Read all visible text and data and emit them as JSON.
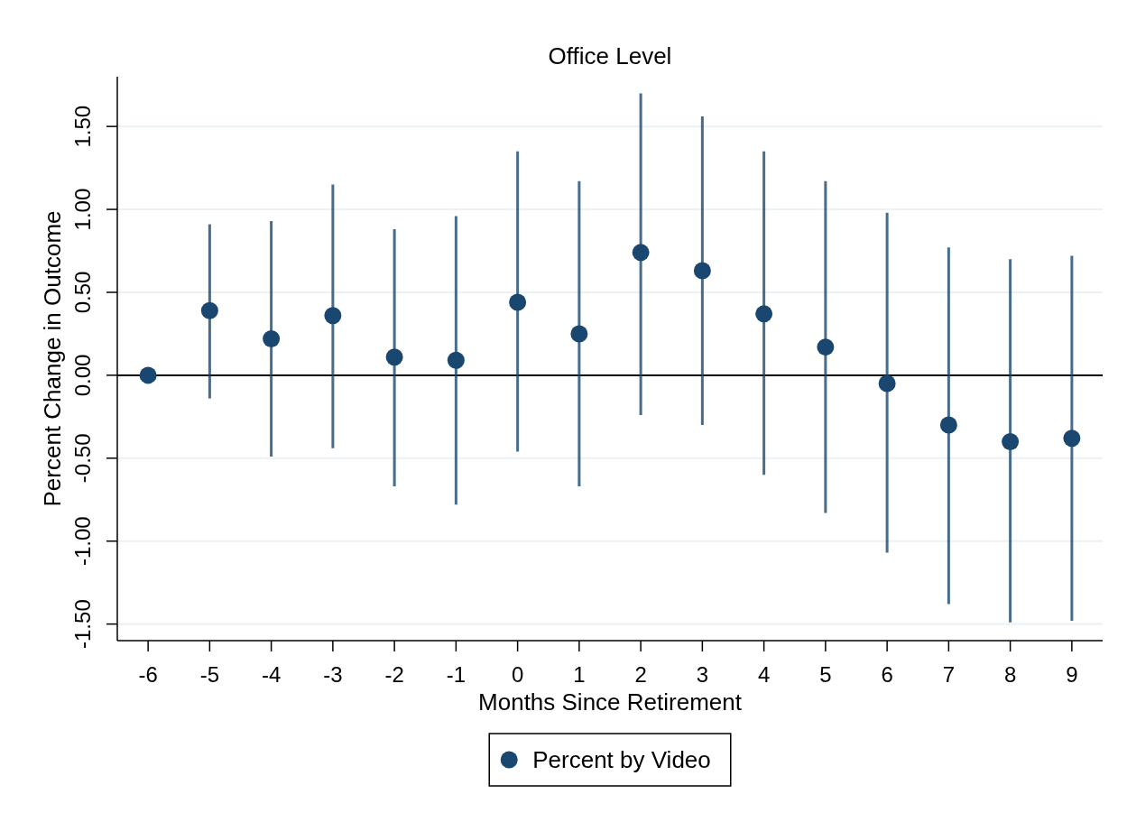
{
  "chart_data": {
    "type": "scatter",
    "title": "Office Level",
    "xlabel": "Months Since Retirement",
    "ylabel": "Percent Change in Outcome",
    "x": [
      -6,
      -5,
      -4,
      -3,
      -2,
      -1,
      0,
      1,
      2,
      3,
      4,
      5,
      6,
      7,
      8,
      9
    ],
    "series": [
      {
        "name": "Percent by Video",
        "color": "#1a476f",
        "values": [
          0,
          0.39,
          0.22,
          0.36,
          0.11,
          0.09,
          0.44,
          0.25,
          0.74,
          0.63,
          0.37,
          0.17,
          -0.05,
          -0.3,
          -0.4,
          -0.38
        ],
        "errors": [
          null,
          [
            -0.14,
            0.91
          ],
          [
            -0.49,
            0.93
          ],
          [
            -0.44,
            1.15
          ],
          [
            -0.67,
            0.88
          ],
          [
            -0.78,
            0.96
          ],
          [
            -0.46,
            1.35
          ],
          [
            -0.67,
            1.17
          ],
          [
            -0.24,
            1.7
          ],
          [
            -0.3,
            1.56
          ],
          [
            -0.6,
            1.35
          ],
          [
            -0.83,
            1.17
          ],
          [
            -1.07,
            0.98
          ],
          [
            -1.38,
            0.77
          ],
          [
            -1.49,
            0.7
          ],
          [
            -1.48,
            0.72
          ]
        ]
      }
    ],
    "xlim": [
      -6.5,
      9.5
    ],
    "xticks": [
      -6,
      -5,
      -4,
      -3,
      -2,
      -1,
      0,
      1,
      2,
      3,
      4,
      5,
      6,
      7,
      8,
      9
    ],
    "ylim": [
      -1.6,
      1.8
    ],
    "yticks": [
      {
        "value": -1.5,
        "label": "-1.50"
      },
      {
        "value": -1,
        "label": "-1.00"
      },
      {
        "value": -0.5,
        "label": "-0.50"
      },
      {
        "value": 0,
        "label": "0.00"
      },
      {
        "value": 0.5,
        "label": "0.50"
      },
      {
        "value": 1,
        "label": "1.00"
      },
      {
        "value": 1.5,
        "label": "1.50"
      }
    ],
    "grid": "y",
    "ref_lines": [
      {
        "axis": "y",
        "value": 0,
        "color": "#000000"
      }
    ],
    "legend": "bottom",
    "marker": "circle"
  }
}
